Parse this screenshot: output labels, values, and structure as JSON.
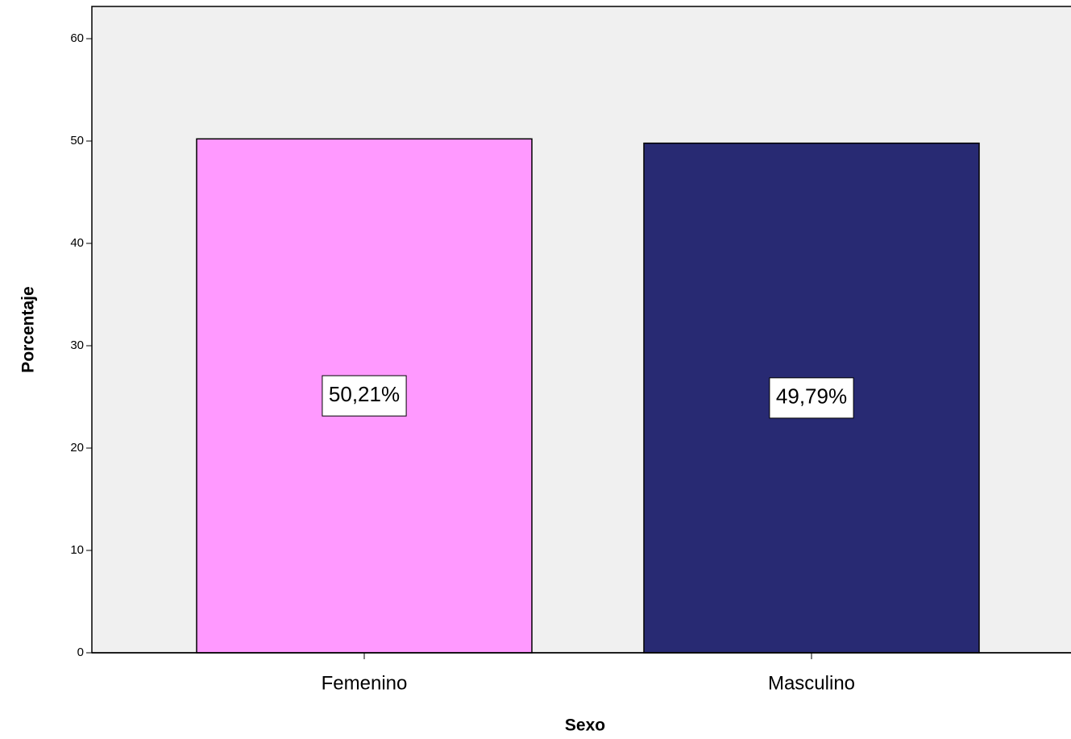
{
  "chart_data": {
    "type": "bar",
    "x_label": "Sexo",
    "y_label": "Porcentaje",
    "categories": [
      "Femenino",
      "Masculino"
    ],
    "values": [
      50.21,
      49.79
    ],
    "value_labels": [
      "50,21%",
      "49,79%"
    ],
    "colors": [
      "#ff99ff",
      "#282a73"
    ],
    "ylim": [
      0,
      63.15
    ],
    "yticks": [
      0,
      10,
      20,
      30,
      40,
      50,
      60
    ]
  }
}
